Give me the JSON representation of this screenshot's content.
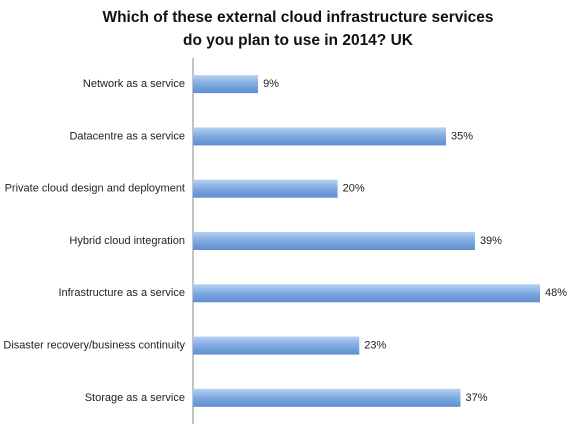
{
  "chart_data": {
    "type": "hbar",
    "title": [
      "Which of these external cloud infrastructure services",
      "do you plan to use in 2014? UK"
    ],
    "categories": [
      "Network as a service",
      "Datacentre as a service",
      "Private cloud design and deployment",
      "Hybrid cloud integration",
      "Infrastructure as a service",
      "Disaster recovery/business continuity",
      "Storage as a service"
    ],
    "values": [
      9,
      35,
      20,
      39,
      48,
      23,
      37
    ],
    "value_labels": [
      "9%",
      "35%",
      "20%",
      "39%",
      "48%",
      "23%",
      "37%"
    ],
    "color": "#7ea9e1"
  }
}
